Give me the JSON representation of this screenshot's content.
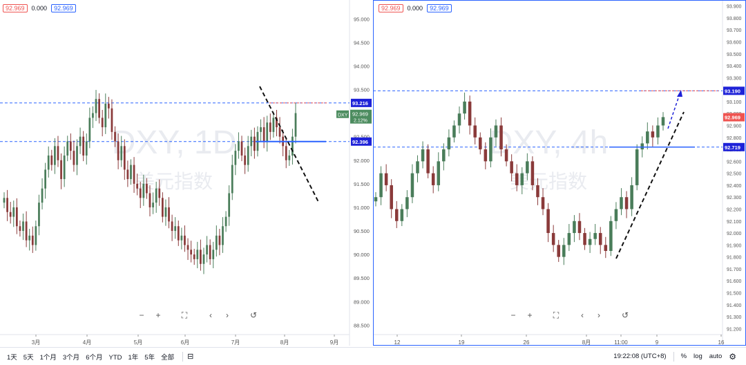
{
  "left_panel": {
    "legend": {
      "open": "92.969",
      "change": "0.000",
      "close": "92.969"
    },
    "watermark": {
      "symbol": "DXY, 1D",
      "name": "美元指数"
    },
    "price_axis": [
      "95.000",
      "94.500",
      "94.000",
      "93.500",
      "93.000",
      "92.500",
      "92.000",
      "91.500",
      "91.000",
      "90.500",
      "90.000",
      "89.500",
      "89.000",
      "88.500"
    ],
    "time_axis": [
      "3月",
      "4月",
      "5月",
      "6月",
      "7月",
      "8月",
      "9月"
    ],
    "labels": {
      "level_high": "93.216",
      "level_low": "92.396",
      "symbol_tag": "DXY",
      "last_price": "92.969",
      "last_change": "2.12%"
    },
    "colors": {
      "up": "#26a69a",
      "down": "#ef5350",
      "level": "#2962ff",
      "candle_up": "#4a7d5a",
      "candle_down": "#8a3a3a"
    }
  },
  "right_panel": {
    "legend": {
      "open": "92.969",
      "change": "0.000",
      "close": "92.969"
    },
    "watermark": {
      "symbol": "DXY, 4h",
      "name": "美元指数"
    },
    "price_axis": [
      "93.900",
      "93.800",
      "93.700",
      "93.600",
      "93.500",
      "93.400",
      "93.300",
      "93.200",
      "93.100",
      "93.000",
      "92.900",
      "92.800",
      "92.700",
      "92.600",
      "92.500",
      "92.400",
      "92.300",
      "92.200",
      "92.100",
      "92.000",
      "91.900",
      "91.800",
      "91.700",
      "91.600",
      "91.500",
      "91.400",
      "91.300",
      "91.200"
    ],
    "time_axis": [
      "12",
      "19",
      "26",
      "8月",
      "11:00",
      "9",
      "16"
    ],
    "labels": {
      "level_high": "93.190",
      "last_price": "92.969",
      "level_low": "92.719"
    }
  },
  "nav_buttons": {
    "zoom_out": "−",
    "zoom_in": "+",
    "fullscreen": "⛶",
    "prev": "‹",
    "next": "›",
    "reset": "↺"
  },
  "bottom_bar": {
    "timeframes": [
      "1天",
      "5天",
      "1个月",
      "3个月",
      "6个月",
      "YTD",
      "1年",
      "5年",
      "全部"
    ],
    "clock": "19:22:08 (UTC+8)",
    "percent": "%",
    "log": "log",
    "auto": "auto"
  },
  "chart_data": [
    {
      "type": "candlestick",
      "title": "DXY, 1D",
      "ylim": [
        88.3,
        95.4
      ],
      "xlabels": [
        "3月",
        "4月",
        "5月",
        "6月",
        "7月",
        "8月",
        "9月"
      ],
      "levels": [
        93.216,
        92.396
      ],
      "last": 92.969,
      "closes": [
        91.2,
        90.9,
        90.8,
        91.0,
        90.6,
        90.5,
        90.7,
        90.3,
        90.4,
        90.2,
        90.6,
        91.1,
        91.4,
        91.8,
        92.1,
        91.9,
        92.3,
        92.0,
        91.6,
        92.1,
        92.4,
        92.2,
        91.9,
        92.3,
        92.5,
        92.1,
        92.4,
        92.9,
        93.0,
        93.3,
        92.9,
        92.7,
        93.2,
        93.1,
        92.6,
        92.4,
        92.0,
        92.3,
        91.8,
        91.6,
        91.9,
        91.5,
        91.4,
        91.2,
        91.5,
        91.3,
        91.0,
        91.1,
        91.4,
        91.2,
        90.8,
        91.0,
        90.7,
        90.5,
        90.6,
        90.3,
        90.4,
        90.2,
        90.1,
        90.0,
        89.9,
        90.1,
        89.8,
        90.0,
        90.2,
        89.9,
        90.1,
        90.4,
        90.2,
        90.6,
        90.8,
        91.3,
        91.9,
        92.2,
        92.4,
        92.1,
        91.9,
        92.3,
        92.5,
        92.2,
        92.6,
        92.7,
        92.4,
        92.8,
        92.6,
        92.9,
        92.7,
        92.5,
        92.3,
        92.0,
        92.1,
        92.5,
        93.0
      ]
    },
    {
      "type": "candlestick",
      "title": "DXY, 4h",
      "ylim": [
        91.15,
        93.95
      ],
      "xlabels": [
        "12",
        "19",
        "26",
        "8月",
        "11:00",
        "9",
        "16"
      ],
      "levels": [
        93.19,
        92.719
      ],
      "last": 92.969,
      "closes": [
        92.3,
        92.5,
        92.4,
        92.2,
        92.1,
        92.2,
        92.3,
        92.5,
        92.6,
        92.7,
        92.5,
        92.4,
        92.6,
        92.7,
        92.8,
        92.9,
        93.0,
        93.1,
        92.9,
        92.8,
        92.7,
        92.6,
        92.8,
        92.9,
        92.7,
        92.6,
        92.5,
        92.4,
        92.5,
        92.6,
        92.4,
        92.3,
        92.2,
        92.0,
        91.9,
        91.8,
        91.9,
        92.0,
        92.1,
        92.0,
        91.9,
        91.95,
        92.0,
        91.9,
        91.85,
        92.1,
        92.2,
        92.3,
        92.2,
        92.4,
        92.7,
        92.75,
        92.85,
        92.8,
        92.9,
        92.97
      ]
    }
  ]
}
